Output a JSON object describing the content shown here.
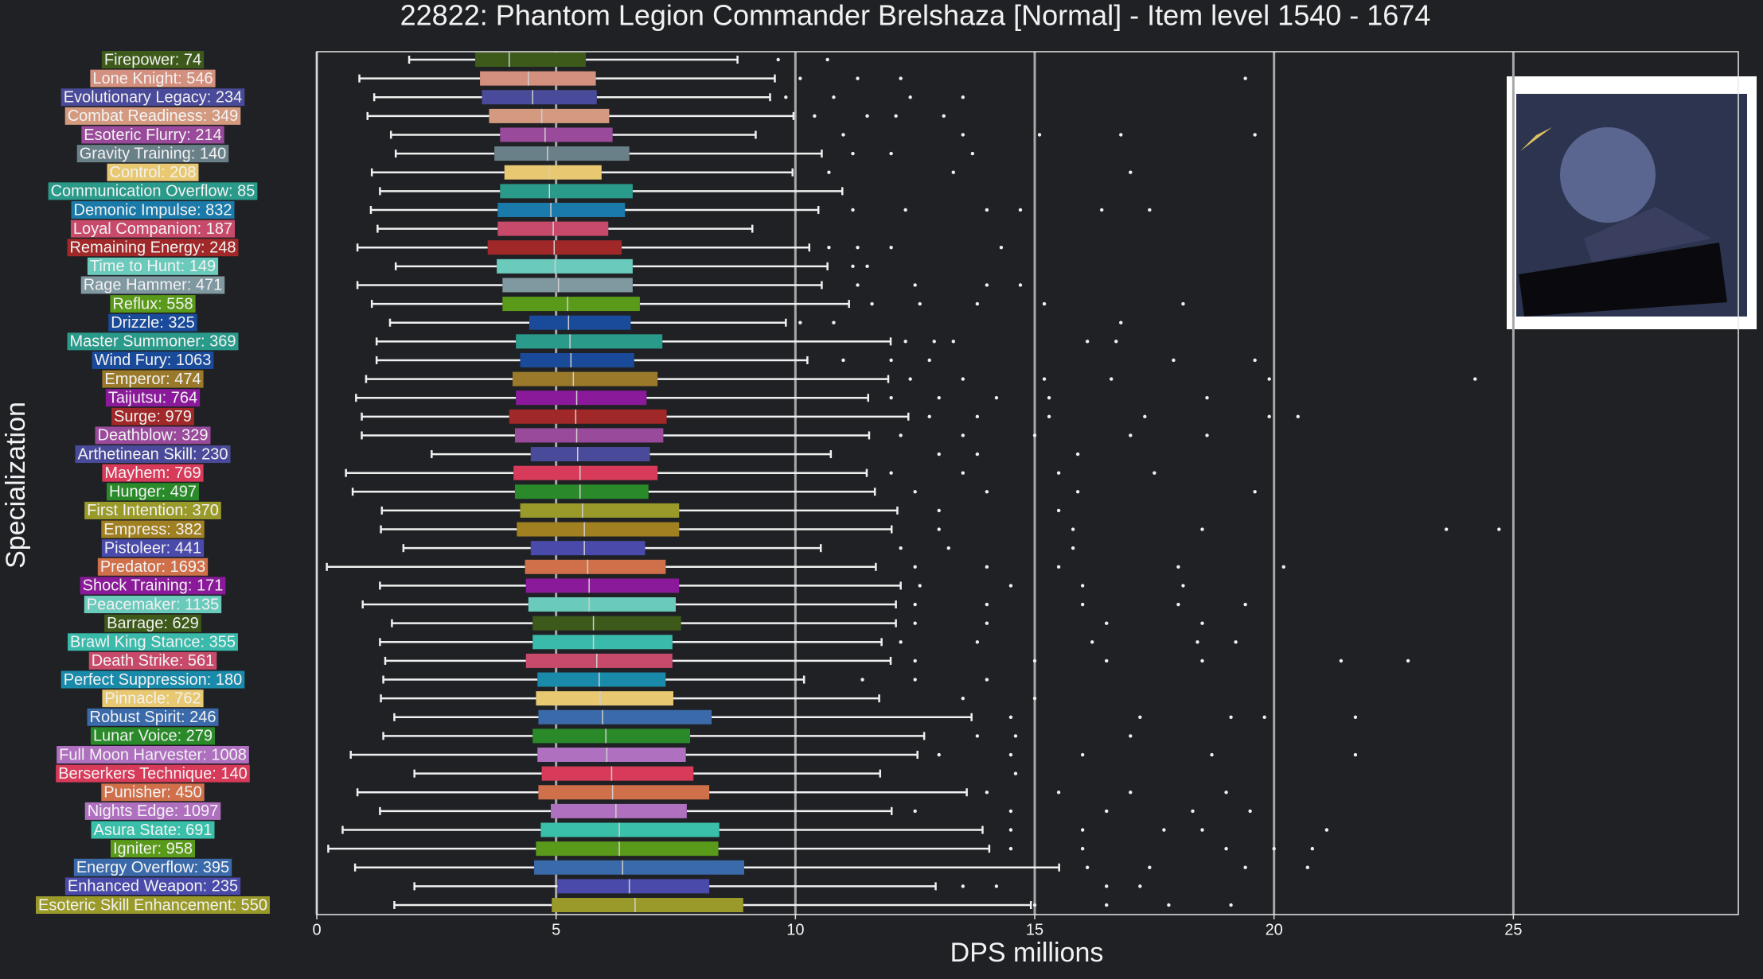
{
  "chart_data": {
    "type": "box",
    "title": "22822: Phantom Legion Commander Brelshaza [Normal] - Item level 1540 - 1674",
    "xlabel": "DPS millions",
    "ylabel": "Specialization",
    "xlim": [
      0,
      29.7
    ],
    "xticks": [
      0,
      5,
      10,
      15,
      20,
      25
    ],
    "grid": true,
    "categories": [
      "Firepower: 74",
      "Lone Knight: 546",
      "Evolutionary Legacy: 234",
      "Combat Readiness: 349",
      "Esoteric Flurry: 214",
      "Gravity Training: 140",
      "Control: 208",
      "Communication Overflow: 85",
      "Demonic Impulse: 832",
      "Loyal Companion: 187",
      "Remaining Energy: 248",
      "Time to Hunt: 149",
      "Rage Hammer: 471",
      "Reflux: 558",
      "Drizzle: 325",
      "Master Summoner: 369",
      "Wind Fury: 1063",
      "Emperor: 474",
      "Taijutsu: 764",
      "Surge: 979",
      "Deathblow: 329",
      "Arthetinean Skill: 230",
      "Mayhem: 769",
      "Hunger: 497",
      "First Intention: 370",
      "Empress: 382",
      "Pistoleer: 441",
      "Predator: 1693",
      "Shock Training: 171",
      "Peacemaker: 1135",
      "Barrage: 629",
      "Brawl King Stance: 355",
      "Death Strike: 561",
      "Perfect Suppression: 180",
      "Pinnacle: 762",
      "Robust Spirit: 246",
      "Lunar Voice: 279",
      "Full Moon Harvester: 1008",
      "Berserkers Technique: 140",
      "Punisher: 450",
      "Nights Edge: 1097",
      "Asura State: 691",
      "Igniter: 958",
      "Energy Overflow: 395",
      "Enhanced Weapon: 235",
      "Esoteric Skill Enhancement: 550"
    ],
    "boxes": [
      {
        "color": "#3d5a1a",
        "whislo": 1.93,
        "q1": 3.31,
        "med": 4.02,
        "q3": 5.62,
        "whishi": 8.79,
        "fliers": [
          9.64,
          10.67
        ]
      },
      {
        "color": "#d4907e",
        "whislo": 0.89,
        "q1": 3.41,
        "med": 4.42,
        "q3": 5.83,
        "whishi": 9.57,
        "fliers": [
          10.1,
          11.3,
          12.2,
          19.4
        ]
      },
      {
        "color": "#4a4a9a",
        "whislo": 1.2,
        "q1": 3.45,
        "med": 4.51,
        "q3": 5.85,
        "whishi": 9.47,
        "fliers": [
          9.8,
          10.8,
          12.4,
          13.5
        ]
      },
      {
        "color": "#d49a80",
        "whislo": 1.06,
        "q1": 3.6,
        "med": 4.7,
        "q3": 6.11,
        "whishi": 9.96,
        "fliers": [
          10.4,
          11.5,
          12.1,
          13.1
        ]
      },
      {
        "color": "#9a4a9a",
        "whislo": 1.55,
        "q1": 3.83,
        "med": 4.77,
        "q3": 6.18,
        "whishi": 9.17,
        "fliers": [
          11.0,
          13.5,
          15.1,
          16.8,
          19.6
        ]
      },
      {
        "color": "#6a8088",
        "whislo": 1.65,
        "q1": 3.71,
        "med": 4.82,
        "q3": 6.53,
        "whishi": 10.55,
        "fliers": [
          11.2,
          12.0,
          13.7
        ]
      },
      {
        "color": "#e8c870",
        "whislo": 1.15,
        "q1": 3.92,
        "med": 4.86,
        "q3": 5.95,
        "whishi": 9.94,
        "fliers": [
          10.7,
          13.3,
          17.0
        ]
      },
      {
        "color": "#2a9a8a",
        "whislo": 1.32,
        "q1": 3.83,
        "med": 4.86,
        "q3": 6.6,
        "whishi": 10.98,
        "fliers": []
      },
      {
        "color": "#1a7aaa",
        "whislo": 1.13,
        "q1": 3.78,
        "med": 4.89,
        "q3": 6.44,
        "whishi": 10.48,
        "fliers": [
          11.2,
          12.3,
          14.0,
          14.7,
          16.4,
          17.4
        ]
      },
      {
        "color": "#c84a6a",
        "whislo": 1.27,
        "q1": 3.78,
        "med": 4.94,
        "q3": 6.09,
        "whishi": 9.1,
        "fliers": []
      },
      {
        "color": "#a02828",
        "whislo": 0.85,
        "q1": 3.57,
        "med": 4.96,
        "q3": 6.37,
        "whishi": 10.29,
        "fliers": [
          10.7,
          11.3,
          12.0,
          14.3
        ]
      },
      {
        "color": "#6acabb",
        "whislo": 1.65,
        "q1": 3.76,
        "med": 4.98,
        "q3": 6.6,
        "whishi": 10.67,
        "fliers": [
          11.2,
          11.5
        ]
      },
      {
        "color": "#8098a0",
        "whislo": 0.85,
        "q1": 3.88,
        "med": 5.05,
        "q3": 6.6,
        "whishi": 10.55,
        "fliers": [
          11.3,
          12.5,
          14.0,
          14.7
        ]
      },
      {
        "color": "#5a9a1a",
        "whislo": 1.15,
        "q1": 3.88,
        "med": 5.24,
        "q3": 6.75,
        "whishi": 11.12,
        "fliers": [
          11.6,
          12.6,
          13.8,
          15.2,
          18.1
        ]
      },
      {
        "color": "#1a4a9a",
        "whislo": 1.53,
        "q1": 4.44,
        "med": 5.26,
        "q3": 6.56,
        "whishi": 9.8,
        "fliers": [
          10.1,
          10.8,
          16.8
        ]
      },
      {
        "color": "#2a9a8a",
        "whislo": 1.25,
        "q1": 4.16,
        "med": 5.29,
        "q3": 7.22,
        "whishi": 11.99,
        "fliers": [
          12.3,
          12.9,
          13.3,
          16.1,
          16.7
        ]
      },
      {
        "color": "#1a4a9a",
        "whislo": 1.25,
        "q1": 4.25,
        "med": 5.31,
        "q3": 6.63,
        "whishi": 10.25,
        "fliers": [
          11.0,
          12.0,
          12.8,
          17.9,
          19.6
        ]
      },
      {
        "color": "#9a7a2a",
        "whislo": 1.03,
        "q1": 4.09,
        "med": 5.36,
        "q3": 7.12,
        "whishi": 11.94,
        "fliers": [
          12.4,
          13.5,
          15.2,
          16.6,
          19.9,
          24.2
        ]
      },
      {
        "color": "#8a1a9a",
        "whislo": 0.82,
        "q1": 4.16,
        "med": 5.43,
        "q3": 6.89,
        "whishi": 11.52,
        "fliers": [
          12.0,
          13.0,
          14.2,
          15.3,
          18.6
        ]
      },
      {
        "color": "#a02828",
        "whislo": 0.94,
        "q1": 4.02,
        "med": 5.41,
        "q3": 7.31,
        "whishi": 12.36,
        "fliers": [
          12.8,
          13.8,
          15.3,
          17.3,
          19.9,
          20.5
        ]
      },
      {
        "color": "#9a4a9a",
        "whislo": 0.94,
        "q1": 4.14,
        "med": 5.43,
        "q3": 7.24,
        "whishi": 11.54,
        "fliers": [
          12.2,
          13.5,
          15.0,
          17.0,
          18.6
        ]
      },
      {
        "color": "#4a4a9a",
        "whislo": 2.4,
        "q1": 4.47,
        "med": 5.45,
        "q3": 6.96,
        "whishi": 10.74,
        "fliers": [
          13.0,
          13.8,
          15.9
        ]
      },
      {
        "color": "#d83a5a",
        "whislo": 0.61,
        "q1": 4.11,
        "med": 5.5,
        "q3": 7.12,
        "whishi": 11.49,
        "fliers": [
          12.0,
          13.5,
          15.5,
          17.5
        ]
      },
      {
        "color": "#2a8a2a",
        "whislo": 0.75,
        "q1": 4.14,
        "med": 5.5,
        "q3": 6.93,
        "whishi": 11.66,
        "fliers": [
          12.5,
          14.0,
          15.9,
          19.6
        ]
      },
      {
        "color": "#9a9a2a",
        "whislo": 1.36,
        "q1": 4.25,
        "med": 5.55,
        "q3": 7.57,
        "whishi": 12.13,
        "fliers": [
          13.0,
          15.5
        ]
      },
      {
        "color": "#a08020",
        "whislo": 1.34,
        "q1": 4.18,
        "med": 5.59,
        "q3": 7.57,
        "whishi": 12.01,
        "fliers": [
          13.0,
          15.8,
          18.5,
          23.6,
          24.7
        ]
      },
      {
        "color": "#4a4aaa",
        "whislo": 1.81,
        "q1": 4.47,
        "med": 5.59,
        "q3": 6.86,
        "whishi": 10.53,
        "fliers": [
          12.2,
          13.2,
          15.8
        ]
      },
      {
        "color": "#d0704a",
        "whislo": 0.21,
        "q1": 4.35,
        "med": 5.66,
        "q3": 7.29,
        "whishi": 11.68,
        "fliers": [
          12.5,
          14.0,
          15.5,
          18.0,
          20.2
        ]
      },
      {
        "color": "#8a1a9a",
        "whislo": 1.32,
        "q1": 4.37,
        "med": 5.69,
        "q3": 7.57,
        "whishi": 12.2,
        "fliers": [
          12.6,
          14.5,
          16.0,
          18.1
        ]
      },
      {
        "color": "#6acabb",
        "whislo": 0.96,
        "q1": 4.42,
        "med": 5.69,
        "q3": 7.5,
        "whishi": 12.1,
        "fliers": [
          12.5,
          14.0,
          16.0,
          18.0,
          19.4
        ]
      },
      {
        "color": "#3d5a1a",
        "whislo": 1.57,
        "q1": 4.51,
        "med": 5.78,
        "q3": 7.61,
        "whishi": 12.1,
        "fliers": [
          12.5,
          14.0,
          16.5,
          18.5
        ]
      },
      {
        "color": "#3abaaa",
        "whislo": 1.32,
        "q1": 4.51,
        "med": 5.78,
        "q3": 7.43,
        "whishi": 11.8,
        "fliers": [
          12.2,
          13.8,
          16.2,
          18.4,
          19.2
        ]
      },
      {
        "color": "#c84a6a",
        "whislo": 1.43,
        "q1": 4.37,
        "med": 5.85,
        "q3": 7.43,
        "whishi": 11.99,
        "fliers": [
          12.5,
          15.0,
          16.5,
          18.5,
          21.4,
          22.8
        ]
      },
      {
        "color": "#1a8aaa",
        "whislo": 1.39,
        "q1": 4.61,
        "med": 5.9,
        "q3": 7.29,
        "whishi": 10.18,
        "fliers": [
          11.4,
          12.5,
          14.0
        ]
      },
      {
        "color": "#e8c870",
        "whislo": 1.34,
        "q1": 4.58,
        "med": 5.92,
        "q3": 7.45,
        "whishi": 11.75,
        "fliers": [
          13.5,
          15.0
        ]
      },
      {
        "color": "#3a6aaa",
        "whislo": 1.62,
        "q1": 4.63,
        "med": 5.97,
        "q3": 8.25,
        "whishi": 13.68,
        "fliers": [
          14.5,
          17.2,
          19.1,
          19.8,
          21.7
        ]
      },
      {
        "color": "#2a8a2a",
        "whislo": 1.39,
        "q1": 4.51,
        "med": 6.04,
        "q3": 7.8,
        "whishi": 12.69,
        "fliers": [
          13.8,
          14.6,
          17.0
        ]
      },
      {
        "color": "#b070c0",
        "whislo": 0.71,
        "q1": 4.61,
        "med": 6.06,
        "q3": 7.71,
        "whishi": 12.55,
        "fliers": [
          13.0,
          14.5,
          16.0,
          18.7,
          21.7
        ]
      },
      {
        "color": "#d83a5a",
        "whislo": 2.04,
        "q1": 4.7,
        "med": 6.16,
        "q3": 7.87,
        "whishi": 11.77,
        "fliers": [
          14.6
        ]
      },
      {
        "color": "#d0704a",
        "whislo": 0.85,
        "q1": 4.63,
        "med": 6.18,
        "q3": 8.2,
        "whishi": 13.58,
        "fliers": [
          14.0,
          15.5,
          17.0,
          19.0
        ]
      },
      {
        "color": "#b070c0",
        "whislo": 1.32,
        "q1": 4.89,
        "med": 6.25,
        "q3": 7.73,
        "whishi": 12.01,
        "fliers": [
          12.5,
          14.5,
          16.5,
          18.3,
          19.5
        ]
      },
      {
        "color": "#3ac0aa",
        "whislo": 0.54,
        "q1": 4.68,
        "med": 6.32,
        "q3": 8.41,
        "whishi": 13.91,
        "fliers": [
          14.5,
          16.0,
          17.7,
          18.5,
          21.1
        ]
      },
      {
        "color": "#5a9a1a",
        "whislo": 0.24,
        "q1": 4.58,
        "med": 6.32,
        "q3": 8.39,
        "whishi": 14.05,
        "fliers": [
          14.5,
          16.0,
          19.0,
          20.0,
          20.8
        ]
      },
      {
        "color": "#3a6aaa",
        "whislo": 0.8,
        "q1": 4.54,
        "med": 6.39,
        "q3": 8.93,
        "whishi": 15.51,
        "fliers": [
          16.1,
          17.4,
          19.4,
          20.7
        ]
      },
      {
        "color": "#4a4aaa",
        "whislo": 2.04,
        "q1": 5.03,
        "med": 6.53,
        "q3": 8.2,
        "whishi": 12.93,
        "fliers": [
          13.5,
          14.2,
          16.5,
          17.2
        ]
      },
      {
        "color": "#9a9a2a",
        "whislo": 1.62,
        "q1": 4.91,
        "med": 6.65,
        "q3": 8.91,
        "whishi": 14.92,
        "fliers": [
          15.0,
          16.5,
          17.8,
          19.1
        ]
      }
    ]
  }
}
